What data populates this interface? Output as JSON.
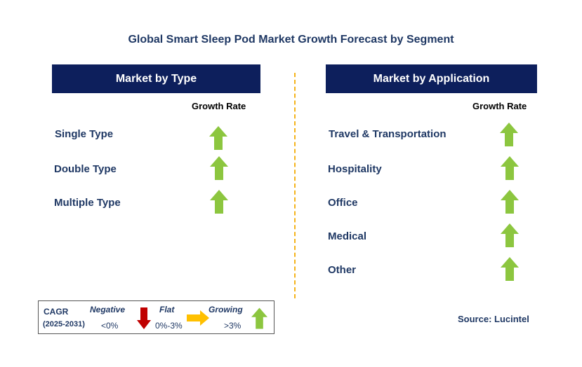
{
  "title": "Global Smart Sleep Pod Market Growth Forecast by Segment",
  "colors": {
    "header_bg": "#0d1f5c",
    "label_text": "#1f3864",
    "growing_arrow": "#8cc63f",
    "negative_arrow": "#c00000",
    "flat_arrow": "#ffc000",
    "divider": "#f5b31b"
  },
  "type_panel": {
    "header": "Market by Type",
    "growth_label": "Growth Rate",
    "items": [
      {
        "label": "Single Type",
        "trend": "growing",
        "icon": "up-arrow-icon"
      },
      {
        "label": "Double Type",
        "trend": "growing",
        "icon": "up-arrow-icon"
      },
      {
        "label": "Multiple Type",
        "trend": "growing",
        "icon": "up-arrow-icon"
      }
    ]
  },
  "application_panel": {
    "header": "Market by Application",
    "growth_label": "Growth Rate",
    "items": [
      {
        "label": "Travel & Transportation",
        "trend": "growing",
        "icon": "up-arrow-icon"
      },
      {
        "label": "Hospitality",
        "trend": "growing",
        "icon": "up-arrow-icon"
      },
      {
        "label": "Office",
        "trend": "growing",
        "icon": "up-arrow-icon"
      },
      {
        "label": "Medical",
        "trend": "growing",
        "icon": "up-arrow-icon"
      },
      {
        "label": "Other",
        "trend": "growing",
        "icon": "up-arrow-icon"
      }
    ]
  },
  "legend": {
    "cagr_label": "CAGR",
    "period": "(2025-2031)",
    "negative": {
      "label": "Negative",
      "range": "<0%",
      "icon": "down-arrow-icon"
    },
    "flat": {
      "label": "Flat",
      "range": "0%-3%",
      "icon": "right-arrow-icon"
    },
    "growing": {
      "label": "Growing",
      "range": ">3%",
      "icon": "up-arrow-icon"
    }
  },
  "source": "Source: Lucintel"
}
